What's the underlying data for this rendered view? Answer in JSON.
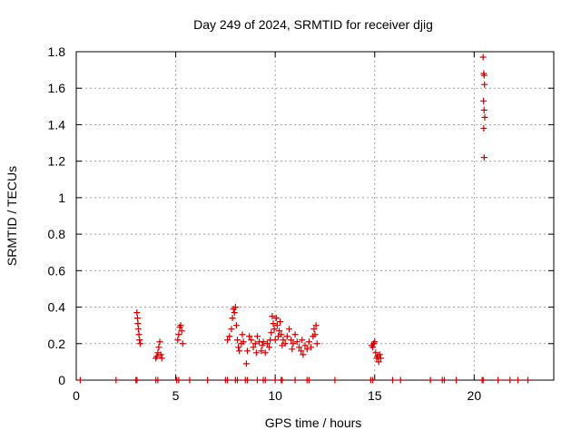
{
  "chart_data": {
    "type": "scatter",
    "title": "Day 249 of 2024, SRMTID for receiver djig",
    "xlabel": "GPS time / hours",
    "ylabel": "SRMTID / TECUs",
    "xlim": [
      0,
      24
    ],
    "ylim": [
      0,
      1.8
    ],
    "xticks": [
      0,
      5,
      10,
      15,
      20
    ],
    "xtick_labels": [
      "0",
      "5",
      "10",
      "15",
      "20"
    ],
    "yticks": [
      0,
      0.2,
      0.4,
      0.6,
      0.8,
      1.0,
      1.2,
      1.4,
      1.6,
      1.8
    ],
    "ytick_labels": [
      "0",
      "0.2",
      "0.4",
      "0.6",
      "0.8",
      "1",
      "1.2",
      "1.4",
      "1.6",
      "1.8"
    ],
    "grid": true,
    "marker": "plus",
    "colors": {
      "series": "#cc0000",
      "grid": "#a0a0a0",
      "axis": "#000000"
    },
    "series": [
      {
        "name": "SRMTID",
        "points": [
          [
            0.2,
            0
          ],
          [
            2.0,
            0
          ],
          [
            3.0,
            0
          ],
          [
            3.05,
            0
          ],
          [
            4.0,
            0
          ],
          [
            4.1,
            0
          ],
          [
            5.05,
            0
          ],
          [
            5.15,
            0
          ],
          [
            5.7,
            0
          ],
          [
            6.6,
            0
          ],
          [
            7.5,
            0
          ],
          [
            7.6,
            0
          ],
          [
            8.0,
            0
          ],
          [
            8.1,
            0
          ],
          [
            8.5,
            0
          ],
          [
            8.6,
            0
          ],
          [
            9.1,
            0
          ],
          [
            9.4,
            0
          ],
          [
            9.5,
            0
          ],
          [
            10.0,
            0
          ],
          [
            10.3,
            0
          ],
          [
            10.35,
            0
          ],
          [
            11.0,
            0
          ],
          [
            11.6,
            0
          ],
          [
            11.7,
            0
          ],
          [
            13.0,
            0
          ],
          [
            14.8,
            0
          ],
          [
            14.9,
            0
          ],
          [
            15.9,
            0
          ],
          [
            16.3,
            0
          ],
          [
            17.8,
            0
          ],
          [
            18.4,
            0
          ],
          [
            18.5,
            0
          ],
          [
            19.1,
            0
          ],
          [
            20.4,
            0
          ],
          [
            20.45,
            0
          ],
          [
            21.2,
            0
          ],
          [
            21.8,
            0
          ],
          [
            22.2,
            0
          ],
          [
            22.7,
            0
          ],
          [
            3.05,
            0.37
          ],
          [
            3.08,
            0.34
          ],
          [
            3.1,
            0.31
          ],
          [
            3.12,
            0.28
          ],
          [
            3.15,
            0.25
          ],
          [
            3.18,
            0.22
          ],
          [
            3.22,
            0.2
          ],
          [
            4.0,
            0.12
          ],
          [
            4.05,
            0.13
          ],
          [
            4.1,
            0.15
          ],
          [
            4.15,
            0.18
          ],
          [
            4.2,
            0.21
          ],
          [
            4.25,
            0.14
          ],
          [
            4.3,
            0.12
          ],
          [
            5.1,
            0.22
          ],
          [
            5.15,
            0.25
          ],
          [
            5.2,
            0.29
          ],
          [
            5.25,
            0.3
          ],
          [
            5.3,
            0.27
          ],
          [
            5.35,
            0.2
          ],
          [
            7.6,
            0.22
          ],
          [
            7.7,
            0.24
          ],
          [
            7.8,
            0.28
          ],
          [
            7.85,
            0.34
          ],
          [
            7.9,
            0.39
          ],
          [
            7.95,
            0.37
          ],
          [
            8.0,
            0.4
          ],
          [
            8.05,
            0.3
          ],
          [
            8.1,
            0.22
          ],
          [
            8.15,
            0.18
          ],
          [
            8.2,
            0.16
          ],
          [
            8.3,
            0.2
          ],
          [
            8.35,
            0.25
          ],
          [
            8.4,
            0.21
          ],
          [
            8.55,
            0.09
          ],
          [
            8.6,
            0.16
          ],
          [
            8.7,
            0.24
          ],
          [
            8.8,
            0.22
          ],
          [
            8.9,
            0.18
          ],
          [
            9.0,
            0.2
          ],
          [
            9.05,
            0.15
          ],
          [
            9.1,
            0.24
          ],
          [
            9.2,
            0.21
          ],
          [
            9.3,
            0.16
          ],
          [
            9.35,
            0.19
          ],
          [
            9.4,
            0.21
          ],
          [
            9.5,
            0.15
          ],
          [
            9.6,
            0.2
          ],
          [
            9.7,
            0.18
          ],
          [
            9.75,
            0.22
          ],
          [
            9.8,
            0.26
          ],
          [
            9.85,
            0.35
          ],
          [
            9.9,
            0.31
          ],
          [
            9.95,
            0.28
          ],
          [
            10.0,
            0.22
          ],
          [
            10.05,
            0.34
          ],
          [
            10.1,
            0.3
          ],
          [
            10.15,
            0.24
          ],
          [
            10.2,
            0.27
          ],
          [
            10.25,
            0.32
          ],
          [
            10.3,
            0.25
          ],
          [
            10.35,
            0.19
          ],
          [
            10.4,
            0.22
          ],
          [
            10.5,
            0.2
          ],
          [
            10.6,
            0.24
          ],
          [
            10.7,
            0.28
          ],
          [
            10.8,
            0.22
          ],
          [
            10.85,
            0.17
          ],
          [
            10.9,
            0.2
          ],
          [
            11.0,
            0.25
          ],
          [
            11.1,
            0.21
          ],
          [
            11.2,
            0.18
          ],
          [
            11.3,
            0.16
          ],
          [
            11.35,
            0.22
          ],
          [
            11.4,
            0.14
          ],
          [
            11.5,
            0.19
          ],
          [
            11.6,
            0.17
          ],
          [
            11.7,
            0.21
          ],
          [
            11.8,
            0.18
          ],
          [
            11.9,
            0.24
          ],
          [
            11.95,
            0.28
          ],
          [
            12.0,
            0.25
          ],
          [
            12.05,
            0.3
          ],
          [
            12.1,
            0.2
          ],
          [
            14.85,
            0.19
          ],
          [
            14.9,
            0.18
          ],
          [
            14.95,
            0.2
          ],
          [
            15.0,
            0.21
          ],
          [
            15.05,
            0.15
          ],
          [
            15.1,
            0.12
          ],
          [
            15.15,
            0.13
          ],
          [
            15.2,
            0.1
          ],
          [
            15.25,
            0.14
          ],
          [
            15.3,
            0.12
          ],
          [
            20.45,
            1.77
          ],
          [
            20.48,
            1.68
          ],
          [
            20.5,
            1.67
          ],
          [
            20.52,
            1.62
          ],
          [
            20.47,
            1.53
          ],
          [
            20.5,
            1.48
          ],
          [
            20.53,
            1.44
          ],
          [
            20.48,
            1.38
          ],
          [
            20.5,
            1.22
          ]
        ]
      }
    ]
  }
}
